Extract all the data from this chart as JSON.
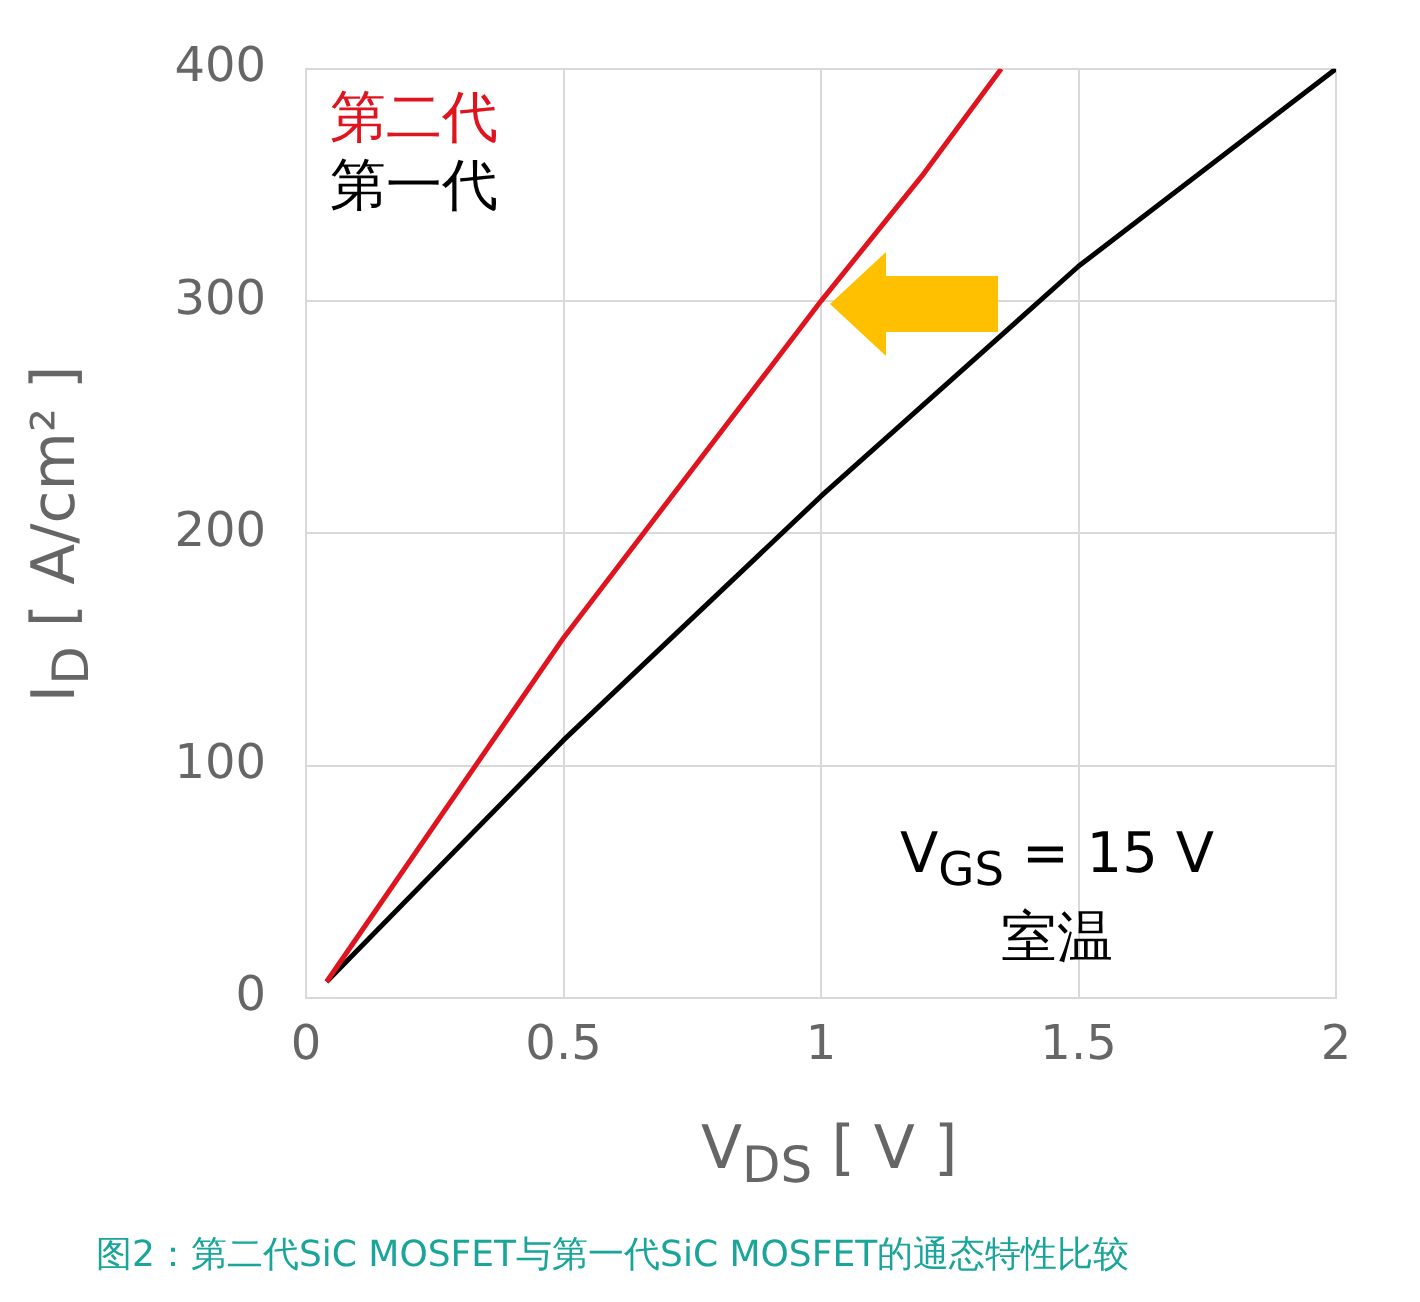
{
  "chart_data": {
    "type": "line",
    "xlabel": "V$_{DS}$ [ V ]",
    "ylabel": "I$_{D}$ [ A/cm² ]",
    "xlim": [
      0,
      2
    ],
    "xticks": [
      0,
      0.5,
      1,
      1.5,
      2
    ],
    "ylim": [
      0,
      400
    ],
    "yticks": [
      0,
      100,
      200,
      300,
      400
    ],
    "grid": true,
    "legend": "top left",
    "marker": "none",
    "line_style": "solid",
    "series": [
      {
        "name": "第二代",
        "color": "#e0141e",
        "x": [
          0.04,
          0.5,
          1,
          1.2,
          1.35
        ],
        "values": [
          7,
          155,
          300,
          355,
          400
        ]
      },
      {
        "name": "第一代",
        "color": "#000000",
        "x": [
          0.04,
          0.5,
          1,
          1.5,
          2
        ],
        "values": [
          7,
          111,
          216,
          315,
          400
        ]
      }
    ],
    "annotations": [
      "V$_{GS}$ = 15 V\n室温",
      "图2：第二代SiC MOSFET与第一代SiC MOSFET的通态特性比较"
    ]
  }
}
